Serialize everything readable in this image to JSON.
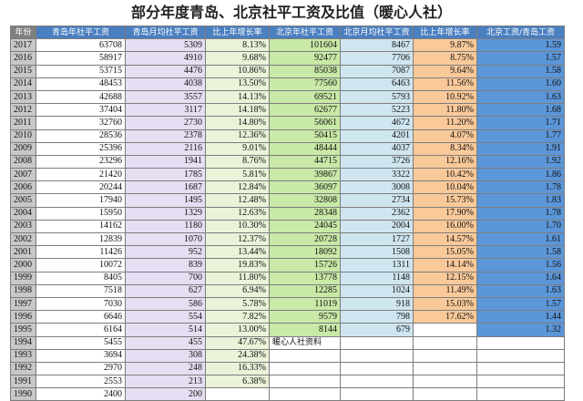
{
  "title": "部分年度青岛、北京社平工资及比值（暖心人社）",
  "headers": [
    "年份",
    "青岛年社平工资",
    "青岛月均社平工资",
    "比上年增长率",
    "北京年社平工资",
    "北京月均社平工资",
    "比上年增长率",
    "北京工资/青岛工资"
  ],
  "rows": [
    {
      "year": "2017",
      "qd_annual": "63708",
      "qd_monthly": "5309",
      "qd_growth": "8.13%",
      "bj_annual": "101604",
      "bj_monthly": "8467",
      "bj_growth": "9.87%",
      "ratio": "1.59"
    },
    {
      "year": "2016",
      "qd_annual": "58917",
      "qd_monthly": "4910",
      "qd_growth": "9.68%",
      "bj_annual": "92477",
      "bj_monthly": "7706",
      "bj_growth": "8.75%",
      "ratio": "1.57"
    },
    {
      "year": "2015",
      "qd_annual": "53715",
      "qd_monthly": "4476",
      "qd_growth": "10.86%",
      "bj_annual": "85038",
      "bj_monthly": "7087",
      "bj_growth": "9.64%",
      "ratio": "1.58"
    },
    {
      "year": "2014",
      "qd_annual": "48453",
      "qd_monthly": "4038",
      "qd_growth": "13.50%",
      "bj_annual": "77560",
      "bj_monthly": "6463",
      "bj_growth": "11.56%",
      "ratio": "1.60"
    },
    {
      "year": "2013",
      "qd_annual": "42688",
      "qd_monthly": "3557",
      "qd_growth": "14.13%",
      "bj_annual": "69521",
      "bj_monthly": "5793",
      "bj_growth": "10.92%",
      "ratio": "1.63"
    },
    {
      "year": "2012",
      "qd_annual": "37404",
      "qd_monthly": "3117",
      "qd_growth": "14.18%",
      "bj_annual": "62677",
      "bj_monthly": "5223",
      "bj_growth": "11.80%",
      "ratio": "1.68"
    },
    {
      "year": "2011",
      "qd_annual": "32760",
      "qd_monthly": "2730",
      "qd_growth": "14.80%",
      "bj_annual": "56061",
      "bj_monthly": "4672",
      "bj_growth": "11.20%",
      "ratio": "1.71"
    },
    {
      "year": "2010",
      "qd_annual": "28536",
      "qd_monthly": "2378",
      "qd_growth": "12.36%",
      "bj_annual": "50415",
      "bj_monthly": "4201",
      "bj_growth": "4.07%",
      "ratio": "1.77"
    },
    {
      "year": "2009",
      "qd_annual": "25396",
      "qd_monthly": "2116",
      "qd_growth": "9.01%",
      "bj_annual": "48444",
      "bj_monthly": "4037",
      "bj_growth": "8.34%",
      "ratio": "1.91"
    },
    {
      "year": "2008",
      "qd_annual": "23296",
      "qd_monthly": "1941",
      "qd_growth": "8.76%",
      "bj_annual": "44715",
      "bj_monthly": "3726",
      "bj_growth": "12.16%",
      "ratio": "1.92"
    },
    {
      "year": "2007",
      "qd_annual": "21420",
      "qd_monthly": "1785",
      "qd_growth": "5.81%",
      "bj_annual": "39867",
      "bj_monthly": "3322",
      "bj_growth": "10.42%",
      "ratio": "1.86"
    },
    {
      "year": "2006",
      "qd_annual": "20244",
      "qd_monthly": "1687",
      "qd_growth": "12.84%",
      "bj_annual": "36097",
      "bj_monthly": "3008",
      "bj_growth": "10.04%",
      "ratio": "1.78"
    },
    {
      "year": "2005",
      "qd_annual": "17940",
      "qd_monthly": "1495",
      "qd_growth": "12.48%",
      "bj_annual": "32808",
      "bj_monthly": "2734",
      "bj_growth": "15.73%",
      "ratio": "1.83"
    },
    {
      "year": "2004",
      "qd_annual": "15950",
      "qd_monthly": "1329",
      "qd_growth": "12.63%",
      "bj_annual": "28348",
      "bj_monthly": "2362",
      "bj_growth": "17.90%",
      "ratio": "1.78"
    },
    {
      "year": "2003",
      "qd_annual": "14162",
      "qd_monthly": "1180",
      "qd_growth": "10.30%",
      "bj_annual": "24045",
      "bj_monthly": "2004",
      "bj_growth": "16.00%",
      "ratio": "1.70"
    },
    {
      "year": "2002",
      "qd_annual": "12839",
      "qd_monthly": "1070",
      "qd_growth": "12.37%",
      "bj_annual": "20728",
      "bj_monthly": "1727",
      "bj_growth": "14.57%",
      "ratio": "1.61"
    },
    {
      "year": "2001",
      "qd_annual": "11426",
      "qd_monthly": "952",
      "qd_growth": "13.44%",
      "bj_annual": "18092",
      "bj_monthly": "1508",
      "bj_growth": "15.05%",
      "ratio": "1.58"
    },
    {
      "year": "2000",
      "qd_annual": "10072",
      "qd_monthly": "839",
      "qd_growth": "19.83%",
      "bj_annual": "15726",
      "bj_monthly": "1311",
      "bj_growth": "14.14%",
      "ratio": "1.56"
    },
    {
      "year": "1999",
      "qd_annual": "8405",
      "qd_monthly": "700",
      "qd_growth": "11.80%",
      "bj_annual": "13778",
      "bj_monthly": "1148",
      "bj_growth": "12.15%",
      "ratio": "1.64"
    },
    {
      "year": "1998",
      "qd_annual": "7518",
      "qd_monthly": "627",
      "qd_growth": "6.94%",
      "bj_annual": "12285",
      "bj_monthly": "1024",
      "bj_growth": "11.49%",
      "ratio": "1.63"
    },
    {
      "year": "1997",
      "qd_annual": "7030",
      "qd_monthly": "586",
      "qd_growth": "5.78%",
      "bj_annual": "11019",
      "bj_monthly": "918",
      "bj_growth": "15.03%",
      "ratio": "1.57"
    },
    {
      "year": "1996",
      "qd_annual": "6646",
      "qd_monthly": "554",
      "qd_growth": "7.82%",
      "bj_annual": "9579",
      "bj_monthly": "798",
      "bj_growth": "17.62%",
      "ratio": "1.44"
    },
    {
      "year": "1995",
      "qd_annual": "6164",
      "qd_monthly": "514",
      "qd_growth": "13.00%",
      "bj_annual": "8144",
      "bj_monthly": "679",
      "bj_growth": "",
      "ratio": "1.32"
    },
    {
      "year": "1994",
      "qd_annual": "5455",
      "qd_monthly": "455",
      "qd_growth": "47.67%",
      "bj_annual": "暖心人社资料",
      "bj_monthly": "",
      "bj_growth": "",
      "ratio": ""
    },
    {
      "year": "1993",
      "qd_annual": "3694",
      "qd_monthly": "308",
      "qd_growth": "24.38%",
      "bj_annual": "",
      "bj_monthly": "",
      "bj_growth": "",
      "ratio": ""
    },
    {
      "year": "1992",
      "qd_annual": "2970",
      "qd_monthly": "248",
      "qd_growth": "16.33%",
      "bj_annual": "",
      "bj_monthly": "",
      "bj_growth": "",
      "ratio": ""
    },
    {
      "year": "1991",
      "qd_annual": "2553",
      "qd_monthly": "213",
      "qd_growth": "6.38%",
      "bj_annual": "",
      "bj_monthly": "",
      "bj_growth": "",
      "ratio": ""
    },
    {
      "year": "1990",
      "qd_annual": "2400",
      "qd_monthly": "200",
      "qd_growth": "",
      "bj_annual": "",
      "bj_monthly": "",
      "bj_growth": "",
      "ratio": ""
    }
  ]
}
